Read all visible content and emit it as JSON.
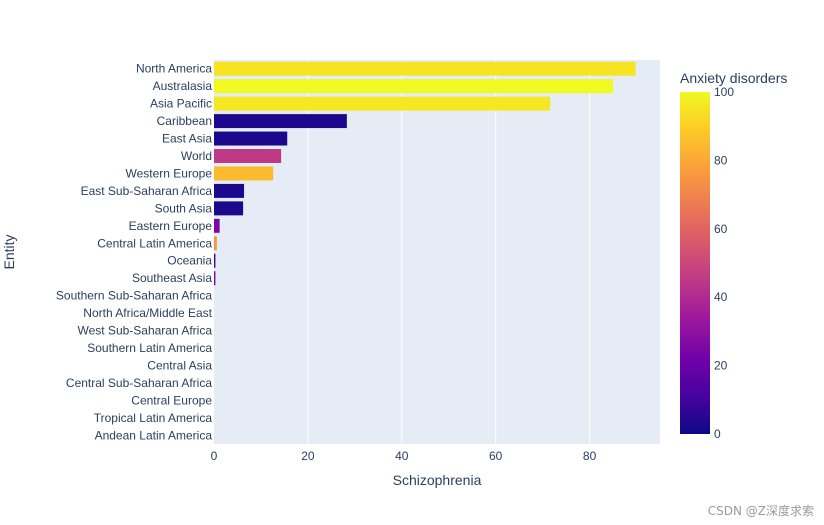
{
  "chart_data": {
    "type": "bar",
    "orientation": "horizontal",
    "xlabel": "Schizophrenia",
    "ylabel": "Entity",
    "xlim": [
      0,
      95
    ],
    "xticks": [
      0,
      20,
      40,
      60,
      80
    ],
    "grid": true,
    "colorbar": {
      "title": "Anxiety disorders",
      "range": [
        0,
        100
      ],
      "ticks": [
        0,
        20,
        40,
        60,
        80,
        100
      ],
      "colorscale": [
        "#0d0887",
        "#46039f",
        "#7201a8",
        "#9c179e",
        "#bd3786",
        "#d8576b",
        "#ed7953",
        "#fb9f3a",
        "#fdca26",
        "#f0f921"
      ]
    },
    "categories": [
      "North America",
      "Australasia",
      "Asia Pacific",
      "Caribbean",
      "East Asia",
      "World",
      "Western Europe",
      "East Sub-Saharan Africa",
      "South Asia",
      "Eastern Europe",
      "Central Latin America",
      "Oceania",
      "Southeast Asia",
      "Southern Sub-Saharan Africa",
      "North Africa/Middle East",
      "West Sub-Saharan Africa",
      "Southern Latin America",
      "Central Asia",
      "Central Sub-Saharan Africa",
      "Central Europe",
      "Tropical Latin America",
      "Andean Latin America"
    ],
    "values": [
      89.8,
      85,
      71.6,
      28.3,
      15.6,
      14.3,
      12.6,
      6.4,
      6.2,
      1.2,
      0.6,
      0.3,
      0.3,
      0,
      0,
      0,
      0,
      0,
      0,
      0,
      0,
      0
    ],
    "colors_values": [
      95,
      100,
      96,
      3,
      3,
      45,
      85,
      3,
      3,
      25,
      75,
      10,
      25,
      0,
      0,
      0,
      0,
      0,
      0,
      0,
      0,
      0
    ]
  },
  "watermark": "CSDN @Z深度求索"
}
